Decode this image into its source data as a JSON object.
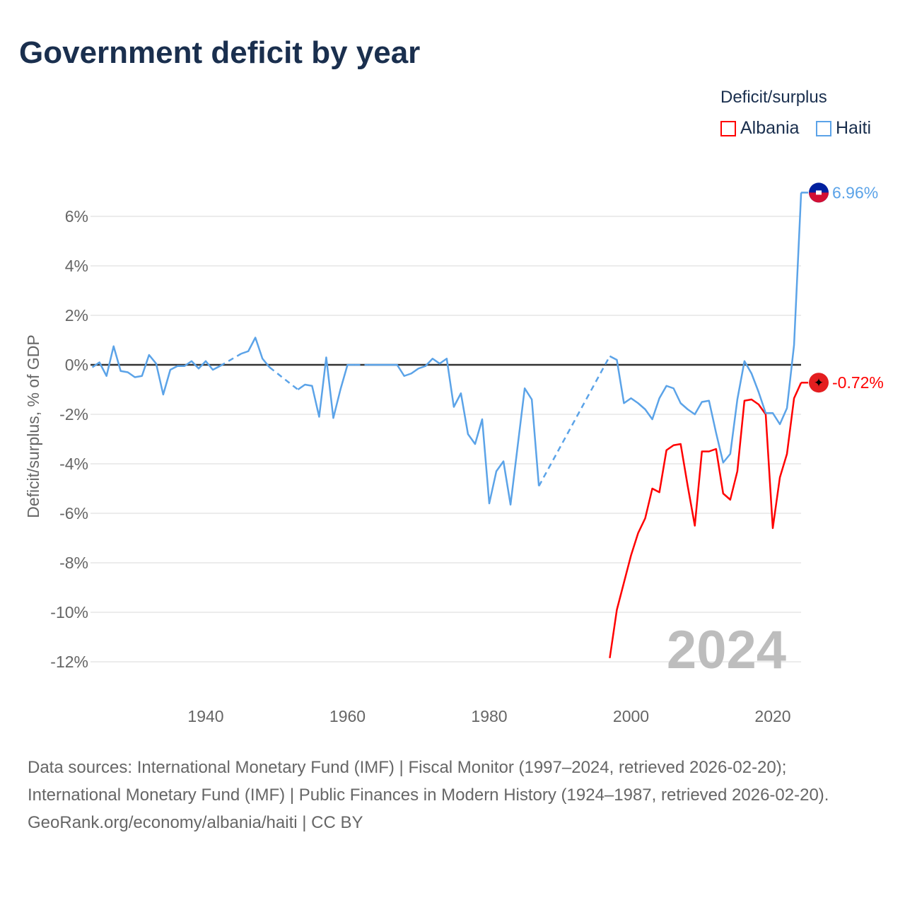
{
  "title": "Government deficit by year",
  "source_lines": [
    "Data sources: International Monetary Fund (IMF) | Fiscal Monitor (1997–2024, retrieved 2026-02-20); International Monetary Fund (IMF) | Public Finances in Modern History (1924–1987, retrieved 2026-02-20)."
  ],
  "credit": "GeoRank.org/economy/albania/haiti | CC BY",
  "chart_data": {
    "type": "line",
    "title": "Government deficit by year",
    "ylabel": "Deficit/surplus, % of GDP",
    "xlim": [
      1924,
      2024
    ],
    "ylim": [
      -13,
      7.5
    ],
    "yticks": [
      6,
      4,
      2,
      0,
      -2,
      -4,
      -6,
      -8,
      -10,
      -12
    ],
    "ytick_labels": [
      "6%",
      "4%",
      "2%",
      "0%",
      "-2%",
      "-4%",
      "-6%",
      "-8%",
      "-10%",
      "-12%"
    ],
    "xticks": [
      1940,
      1960,
      1980,
      2000,
      2020
    ],
    "xtick_labels": [
      "1940",
      "1960",
      "1980",
      "2000",
      "2020"
    ],
    "legend_title": "Deficit/surplus",
    "legend_placement": "top-right",
    "year_watermark": "2024",
    "series": [
      {
        "name": "Albania",
        "color": "#ff0000",
        "end_label": "-0.72%",
        "flag_colors": [
          "#e41e20",
          "#000000"
        ],
        "start": 1997,
        "values": [
          -11.85,
          -9.9,
          -8.8,
          -7.7,
          -6.8,
          -6.2,
          -5.0,
          -5.15,
          -3.45,
          -3.25,
          -3.2,
          -4.9,
          -6.5,
          -3.5,
          -3.5,
          -3.4,
          -5.2,
          -5.45,
          -4.3,
          -1.45,
          -1.4,
          -1.6,
          -2.0,
          -6.6,
          -4.55,
          -3.6,
          -1.35,
          -0.72
        ]
      },
      {
        "name": "Haiti",
        "color": "#5ba3e8",
        "end_label": "6.96%",
        "flag_colors": [
          "#00209f",
          "#d21034"
        ],
        "start": 1924,
        "values": [
          -0.1,
          0.1,
          -0.45,
          0.75,
          -0.25,
          -0.3,
          -0.5,
          -0.45,
          0.4,
          0.05,
          -1.2,
          -0.2,
          -0.05,
          -0.05,
          0.15,
          -0.15,
          0.15,
          -0.2,
          -0.05,
          null,
          null,
          0.45,
          0.55,
          1.1,
          0.25,
          -0.1,
          null,
          null,
          null,
          -1.0,
          -0.8,
          -0.85,
          -2.1,
          0.3,
          -2.15,
          -1.0,
          0.0,
          0.0,
          null,
          0.0,
          0.0,
          0.0,
          0.0,
          0.0,
          -0.45,
          -0.35,
          -0.15,
          -0.05,
          0.25,
          0.05,
          0.25,
          -1.7,
          -1.15,
          -2.8,
          -3.2,
          -2.2,
          -5.6,
          -4.3,
          -3.9,
          -5.65,
          -3.3,
          -0.95,
          -1.4,
          -4.9,
          null,
          null,
          null,
          null,
          null,
          null,
          null,
          null,
          null,
          0.35,
          0.2,
          -1.55,
          -1.35,
          -1.55,
          -1.8,
          -2.2,
          -1.35,
          -0.85,
          -0.95,
          -1.55,
          -1.8,
          -2.0,
          -1.5,
          -1.45,
          -2.75,
          -3.95,
          -3.6,
          -1.4,
          0.15,
          -0.35,
          -1.1,
          -1.95,
          -1.95,
          -2.4,
          -1.75,
          0.8,
          6.96
        ]
      }
    ]
  }
}
